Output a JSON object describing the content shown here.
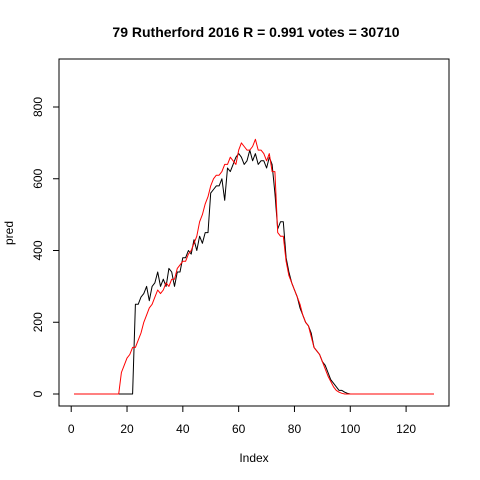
{
  "chart_data": {
    "type": "line",
    "title": "79 Rutherford 2016 R = 0.991 votes = 30710",
    "xlabel": "Index",
    "ylabel": "pred",
    "xlim": [
      1,
      130
    ],
    "ylim": [
      0,
      900
    ],
    "x_ticks": [
      0,
      20,
      40,
      60,
      80,
      100,
      120
    ],
    "y_ticks": [
      0,
      200,
      400,
      600,
      800
    ],
    "grid": false,
    "legend": "none",
    "colors": {
      "actual": "#000000",
      "pred": "#ff0000"
    },
    "x": [
      1,
      2,
      3,
      4,
      5,
      6,
      7,
      8,
      9,
      10,
      11,
      12,
      13,
      14,
      15,
      16,
      17,
      18,
      19,
      20,
      21,
      22,
      23,
      24,
      25,
      26,
      27,
      28,
      29,
      30,
      31,
      32,
      33,
      34,
      35,
      36,
      37,
      38,
      39,
      40,
      41,
      42,
      43,
      44,
      45,
      46,
      47,
      48,
      49,
      50,
      51,
      52,
      53,
      54,
      55,
      56,
      57,
      58,
      59,
      60,
      61,
      62,
      63,
      64,
      65,
      66,
      67,
      68,
      69,
      70,
      71,
      72,
      73,
      74,
      75,
      76,
      77,
      78,
      79,
      80,
      81,
      82,
      83,
      84,
      85,
      86,
      87,
      88,
      89,
      90,
      91,
      92,
      93,
      94,
      95,
      96,
      97,
      98,
      99,
      100,
      101,
      102,
      103,
      104,
      105,
      106,
      107,
      108,
      109,
      110,
      111,
      112,
      113,
      114,
      115,
      116,
      117,
      118,
      119,
      120,
      121,
      122,
      123,
      124,
      125,
      126,
      127,
      128,
      129,
      130
    ],
    "series": [
      {
        "values": [
          0,
          0,
          0,
          0,
          0,
          0,
          0,
          0,
          0,
          0,
          0,
          0,
          0,
          0,
          0,
          0,
          0,
          0,
          0,
          0,
          0,
          0,
          250,
          250,
          270,
          280,
          300,
          260,
          300,
          310,
          340,
          300,
          320,
          300,
          350,
          340,
          300,
          340,
          340,
          380,
          380,
          400,
          390,
          430,
          400,
          440,
          420,
          450,
          450,
          560,
          570,
          580,
          580,
          600,
          540,
          630,
          620,
          640,
          660,
          670,
          660,
          640,
          650,
          680,
          650,
          670,
          640,
          650,
          650,
          630,
          660,
          640,
          560,
          460,
          480,
          480,
          380,
          340,
          310,
          290,
          270,
          240,
          220,
          200,
          190,
          170,
          130,
          120,
          110,
          90,
          80,
          60,
          40,
          30,
          20,
          10,
          10,
          5,
          2,
          0,
          0,
          0,
          0,
          0,
          0,
          0,
          0,
          0,
          0,
          0,
          0,
          0,
          0,
          0,
          0,
          0,
          0,
          0,
          0,
          0,
          0,
          0,
          0,
          0,
          0,
          0,
          0,
          0,
          0,
          0
        ]
      },
      {
        "values": [
          0,
          0,
          0,
          0,
          0,
          0,
          0,
          0,
          0,
          0,
          0,
          0,
          0,
          0,
          0,
          0,
          0,
          60,
          80,
          100,
          110,
          130,
          130,
          150,
          170,
          200,
          220,
          240,
          250,
          270,
          290,
          280,
          290,
          310,
          300,
          320,
          320,
          350,
          360,
          370,
          370,
          390,
          400,
          420,
          440,
          480,
          500,
          530,
          550,
          580,
          600,
          610,
          610,
          620,
          640,
          640,
          660,
          650,
          640,
          680,
          700,
          690,
          680,
          680,
          690,
          710,
          680,
          680,
          670,
          650,
          670,
          620,
          620,
          450,
          440,
          440,
          370,
          330,
          310,
          290,
          270,
          250,
          220,
          200,
          190,
          160,
          130,
          120,
          110,
          90,
          70,
          50,
          35,
          20,
          10,
          5,
          2,
          0,
          0,
          0,
          0,
          0,
          0,
          0,
          0,
          0,
          0,
          0,
          0,
          0,
          0,
          0,
          0,
          0,
          0,
          0,
          0,
          0,
          0,
          0,
          0,
          0,
          0,
          0,
          0,
          0,
          0,
          0,
          0,
          0
        ]
      }
    ]
  }
}
